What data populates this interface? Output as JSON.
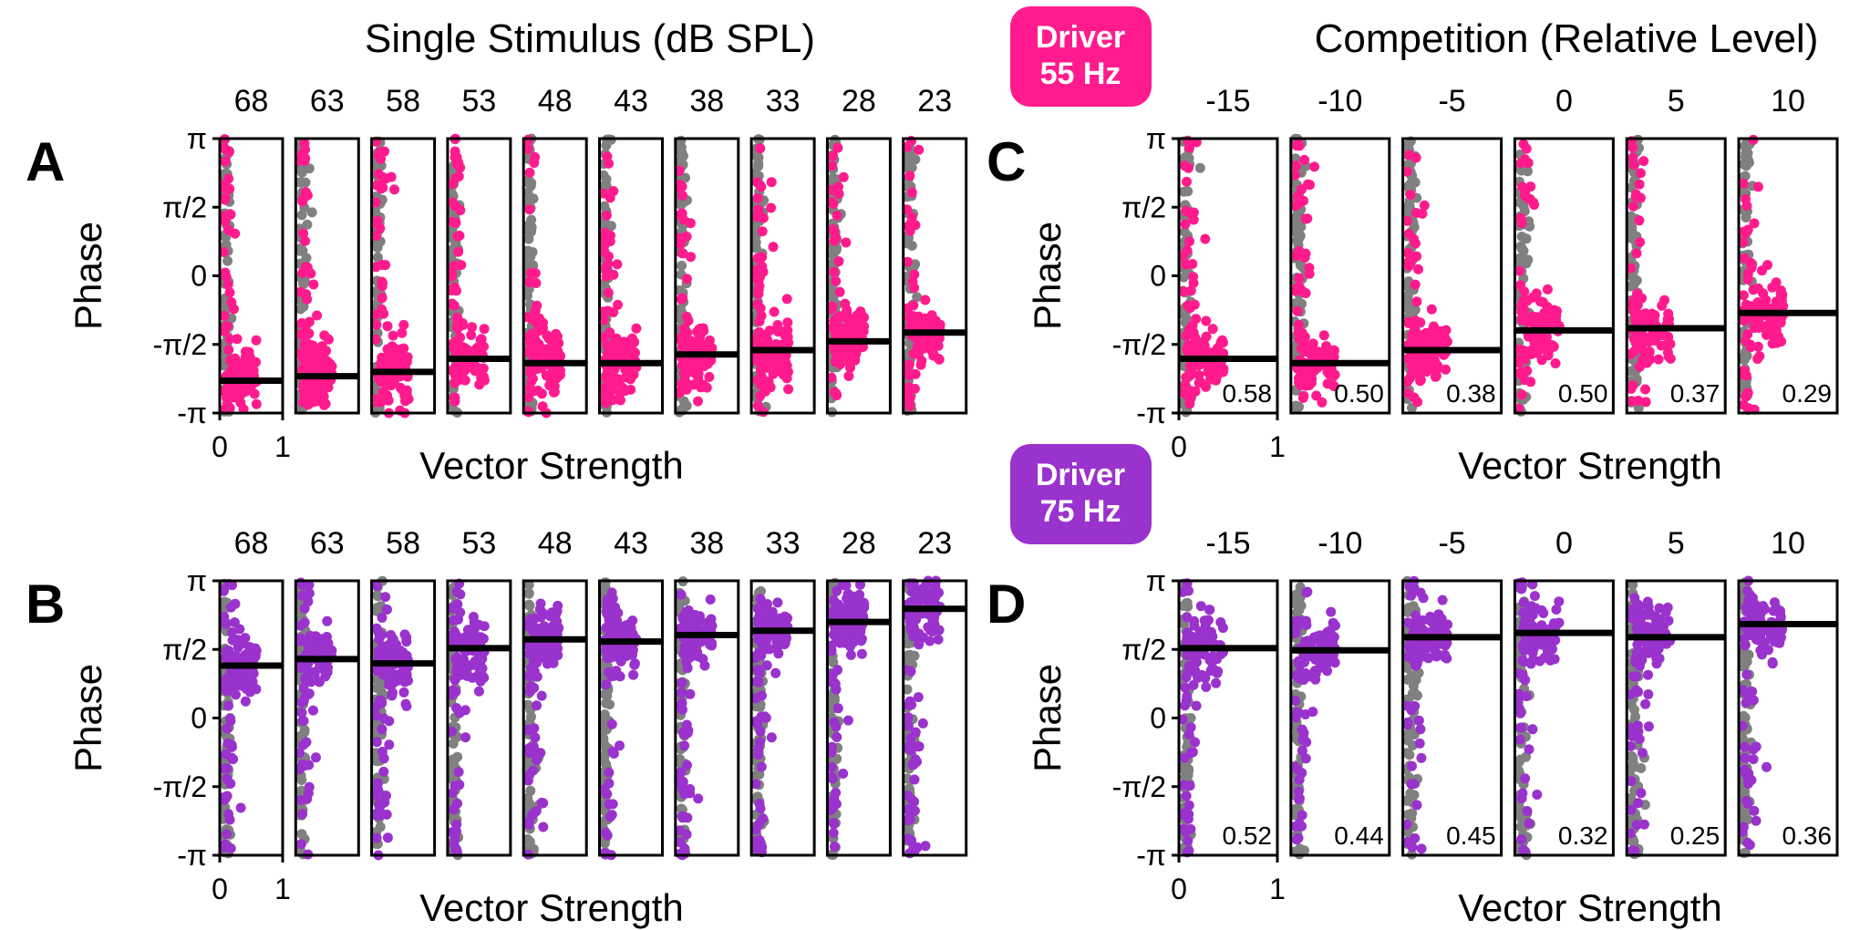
{
  "colors": {
    "driver55": "#ff1b8d",
    "driver75": "#9a32cd",
    "gray": "#808080",
    "mean_line": "#000000"
  },
  "titles": {
    "single": "Single Stimulus (dB SPL)",
    "competition": "Competition (Relative Level)"
  },
  "badges": {
    "top": {
      "line1": "Driver",
      "line2": "55 Hz"
    },
    "bottom": {
      "line1": "Driver",
      "line2": "75 Hz"
    }
  },
  "axis": {
    "ylabel": "Phase",
    "xlabel": "Vector Strength",
    "yticks": [
      "π",
      "π/2",
      "0",
      "-π/2",
      "-π"
    ],
    "xticks": [
      "0",
      "1"
    ]
  },
  "chart_data": [
    {
      "panel": "A",
      "type": "scatter",
      "color_key": "driver55",
      "columns": [
        "68",
        "63",
        "58",
        "53",
        "48",
        "43",
        "38",
        "33",
        "28",
        "23"
      ],
      "mean_phase": [
        -2.4,
        -2.3,
        -2.2,
        -1.9,
        -2.0,
        -2.0,
        -1.8,
        -1.7,
        -1.5,
        -1.3
      ],
      "vector_strength": [],
      "xlim": [
        0,
        1
      ],
      "ylim": [
        -3.1416,
        3.1416
      ]
    },
    {
      "panel": "B",
      "type": "scatter",
      "color_key": "driver75",
      "columns": [
        "68",
        "63",
        "58",
        "53",
        "48",
        "43",
        "38",
        "33",
        "28",
        "23"
      ],
      "mean_phase": [
        1.2,
        1.35,
        1.25,
        1.6,
        1.8,
        1.75,
        1.9,
        2.0,
        2.2,
        2.5
      ],
      "vector_strength": [],
      "xlim": [
        0,
        1
      ],
      "ylim": [
        -3.1416,
        3.1416
      ]
    },
    {
      "panel": "C",
      "type": "scatter",
      "color_key": "driver55",
      "columns": [
        "-15",
        "-10",
        "-5",
        "0",
        "5",
        "10"
      ],
      "mean_phase": [
        -1.9,
        -2.0,
        -1.7,
        -1.25,
        -1.2,
        -0.85
      ],
      "vector_strength": [
        "0.58",
        "0.50",
        "0.38",
        "0.50",
        "0.37",
        "0.29"
      ],
      "xlim": [
        0,
        1
      ],
      "ylim": [
        -3.1416,
        3.1416
      ]
    },
    {
      "panel": "D",
      "type": "scatter",
      "color_key": "driver75",
      "columns": [
        "-15",
        "-10",
        "-5",
        "0",
        "5",
        "10"
      ],
      "mean_phase": [
        1.6,
        1.55,
        1.85,
        1.95,
        1.85,
        2.15
      ],
      "vector_strength": [
        "0.52",
        "0.44",
        "0.45",
        "0.32",
        "0.25",
        "0.36"
      ],
      "xlim": [
        0,
        1
      ],
      "ylim": [
        -3.1416,
        3.1416
      ]
    }
  ]
}
